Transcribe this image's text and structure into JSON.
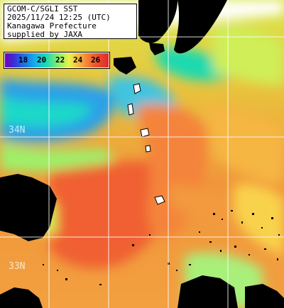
{
  "header": {
    "line1": "GCOM-C/SGLI SST",
    "line2": "2025/11/24 12:25 (UTC)",
    "line3": "Kanagawa Prefecture",
    "line4": "supplied by JAXA"
  },
  "scale": {
    "labels": [
      "18",
      "20",
      "22",
      "24",
      "26"
    ]
  },
  "grid": {
    "lat_labels": [
      "34N",
      "33N"
    ]
  },
  "colors": {
    "land": "#000000",
    "cold": "#1e6ee8",
    "warm": "#f05a2e",
    "grid": "#ffffff"
  }
}
